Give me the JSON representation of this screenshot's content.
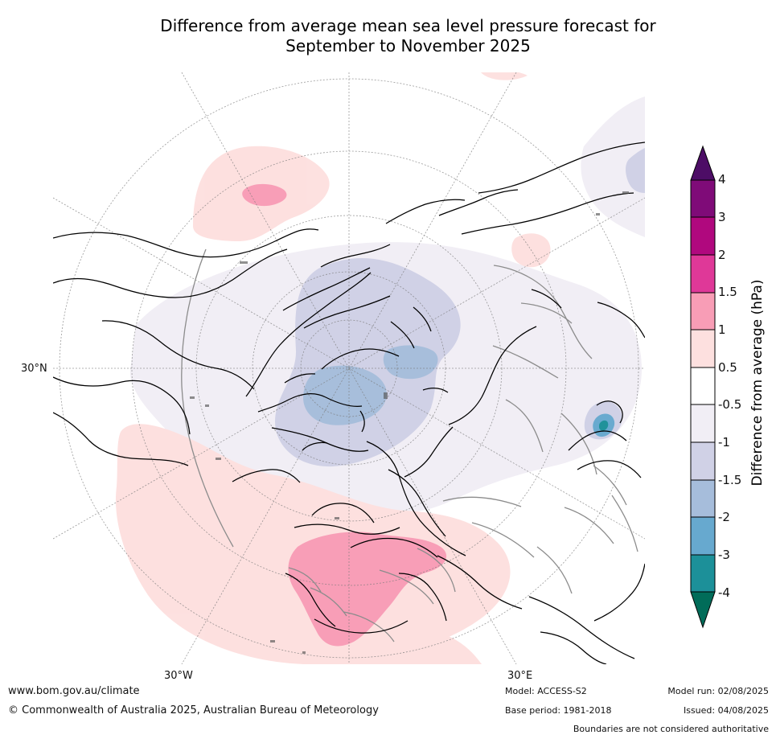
{
  "title": "Difference from average mean sea level pressure forecast for\nSeptember to November 2025",
  "title_lines": [
    "Difference from average mean sea level pressure forecast for",
    "September to November 2025"
  ],
  "map": {
    "projection": "north-polar-stereographic",
    "labels": {
      "left_lat": "30°N",
      "bottom_left_lon": "30°W",
      "bottom_right_lon": "30°E"
    }
  },
  "legend": {
    "title": "Difference from average (hPa)",
    "tick_labels": [
      "4",
      "3",
      "2",
      "1.5",
      "1",
      "0.5",
      "-0.5",
      "-1",
      "-1.5",
      "-2",
      "-3",
      "-4"
    ],
    "colors": {
      "gt_4": "#4d0d66",
      "3_to_4": "#7f0b78",
      "2_to_3": "#b0087e",
      "1.5_to_2": "#df3898",
      "1_to_1.5": "#f89db6",
      "0.5_to_1": "#fde0df",
      "neutral": "#ffffff",
      "-1_to_-0.5": "#f1eef5",
      "-1.5_to_-1": "#d0d1e6",
      "-2_to_-1.5": "#a6bddb",
      "-3_to_-2": "#67a9cf",
      "-4_to_-3": "#1c9099",
      "lt_-4": "#016c59"
    }
  },
  "footer": {
    "website": "www.bom.gov.au/climate",
    "copyright": "© Commonwealth of Australia 2025, Australian Bureau of Meteorology",
    "model": "Model: ACCESS-S2",
    "base_period": "Base period: 1981-2018",
    "model_run": "Model run: 02/08/2025",
    "issued": "Issued: 04/08/2025",
    "disclaimer": "Boundaries are not considered authoritative"
  }
}
